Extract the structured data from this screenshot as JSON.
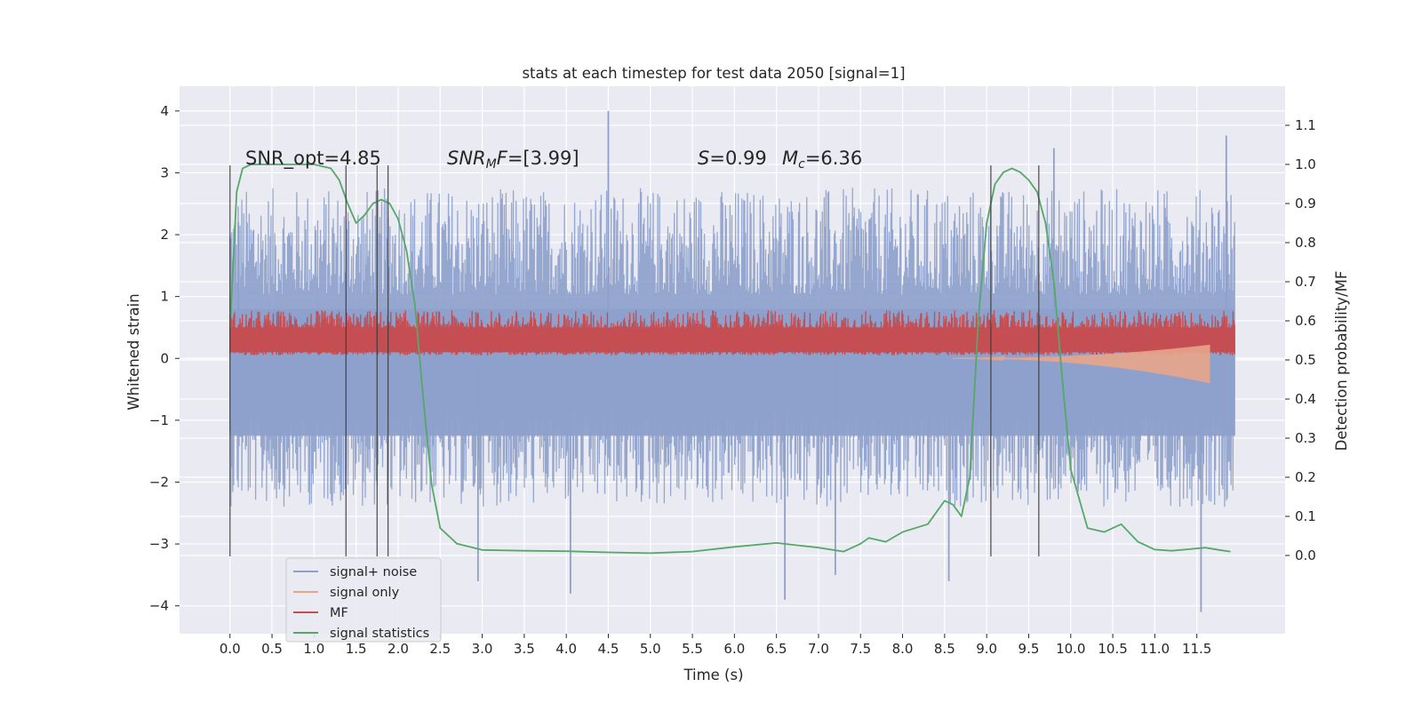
{
  "chart_data": {
    "type": "line",
    "title": "stats at each timestep for test data 2050 [signal=1]",
    "xlabel": "Time (s)",
    "ylabel": "Whitened strain",
    "ylabel_right": "Detection probability/MF",
    "xlim": [
      -0.6,
      12.55
    ],
    "ylim": [
      -4.45,
      4.4
    ],
    "ylim_right": [
      -0.2,
      1.2
    ],
    "xticks": [
      "0.0",
      "0.5",
      "1.0",
      "1.5",
      "2.0",
      "2.5",
      "3.0",
      "3.5",
      "4.0",
      "4.5",
      "5.0",
      "5.5",
      "6.0",
      "6.5",
      "7.0",
      "7.5",
      "8.0",
      "8.5",
      "9.0",
      "9.5",
      "10.0",
      "10.5",
      "11.0",
      "11.5"
    ],
    "yticks_left": [
      "4",
      "3",
      "2",
      "1",
      "0",
      "−1",
      "−2",
      "−3",
      "−4"
    ],
    "yticks_right": [
      "1.1",
      "1.0",
      "0.9",
      "0.8",
      "0.7",
      "0.6",
      "0.5",
      "0.4",
      "0.3",
      "0.2",
      "0.1",
      "0.0"
    ],
    "grid": true,
    "legend_position": "lower-left",
    "annotations": {
      "snr_opt": "SNR_opt=4.85",
      "snr_mf_sym": "SNR",
      "snr_mf_sub": "M",
      "snr_mf_sym2": "F",
      "snr_mf_val": "=[3.99]",
      "s_sym": "S",
      "s_val": "=0.99",
      "mc_sym": "M",
      "mc_sub": "c",
      "mc_val": "=6.36"
    },
    "series": [
      {
        "name": "signal+ noise",
        "color": "#8da0cb",
        "kind": "noise-band",
        "t_range": [
          0.0,
          11.95
        ],
        "envelope_low": -2.0,
        "envelope_high": 2.3,
        "spikes": [
          [
            4.5,
            4.0
          ],
          [
            4.05,
            -3.8
          ],
          [
            6.6,
            -3.9
          ],
          [
            7.2,
            -3.5
          ],
          [
            2.95,
            -3.6
          ],
          [
            9.8,
            3.4
          ],
          [
            11.55,
            -4.1
          ],
          [
            11.85,
            3.6
          ],
          [
            8.55,
            -3.6
          ],
          [
            0.1,
            2.2
          ]
        ]
      },
      {
        "name": "signal only",
        "color": "#e8a58a",
        "kind": "chirp",
        "t_range": [
          8.6,
          11.65
        ],
        "final_amplitude": 0.4
      },
      {
        "name": "MF",
        "color": "#c44e52",
        "kind": "mf-band",
        "t_range": [
          0.0,
          11.95
        ],
        "envelope_low": 0.05,
        "envelope_high": 0.65,
        "max": 1.0
      },
      {
        "name": "signal statistics",
        "color": "#55a868",
        "axis": "right",
        "t": [
          0.0,
          0.08,
          0.15,
          0.25,
          0.5,
          1.0,
          1.2,
          1.3,
          1.4,
          1.5,
          1.6,
          1.7,
          1.8,
          1.9,
          2.0,
          2.1,
          2.2,
          2.3,
          2.4,
          2.5,
          2.7,
          3.0,
          3.5,
          4.0,
          4.5,
          5.0,
          5.5,
          6.0,
          6.5,
          7.0,
          7.3,
          7.5,
          7.6,
          7.8,
          8.0,
          8.3,
          8.5,
          8.6,
          8.7,
          8.8,
          8.9,
          9.0,
          9.1,
          9.2,
          9.3,
          9.4,
          9.5,
          9.6,
          9.7,
          9.8,
          9.9,
          10.0,
          10.2,
          10.4,
          10.6,
          10.8,
          11.0,
          11.2,
          11.4,
          11.6,
          11.8,
          11.9
        ],
        "values": [
          0.58,
          0.93,
          0.99,
          1.0,
          1.0,
          1.0,
          0.99,
          0.96,
          0.9,
          0.85,
          0.87,
          0.9,
          0.91,
          0.9,
          0.86,
          0.78,
          0.64,
          0.4,
          0.18,
          0.07,
          0.03,
          0.014,
          0.012,
          0.011,
          0.008,
          0.006,
          0.01,
          0.022,
          0.032,
          0.02,
          0.01,
          0.03,
          0.045,
          0.035,
          0.06,
          0.08,
          0.14,
          0.13,
          0.1,
          0.2,
          0.6,
          0.85,
          0.95,
          0.98,
          0.99,
          0.98,
          0.96,
          0.93,
          0.85,
          0.7,
          0.45,
          0.22,
          0.07,
          0.06,
          0.08,
          0.035,
          0.015,
          0.012,
          0.016,
          0.02,
          0.013,
          0.01
        ]
      }
    ],
    "vertical_lines": [
      0.0,
      1.38,
      1.75,
      1.88,
      9.05,
      9.62
    ],
    "vertical_lines_color": "#3a3a3a"
  }
}
